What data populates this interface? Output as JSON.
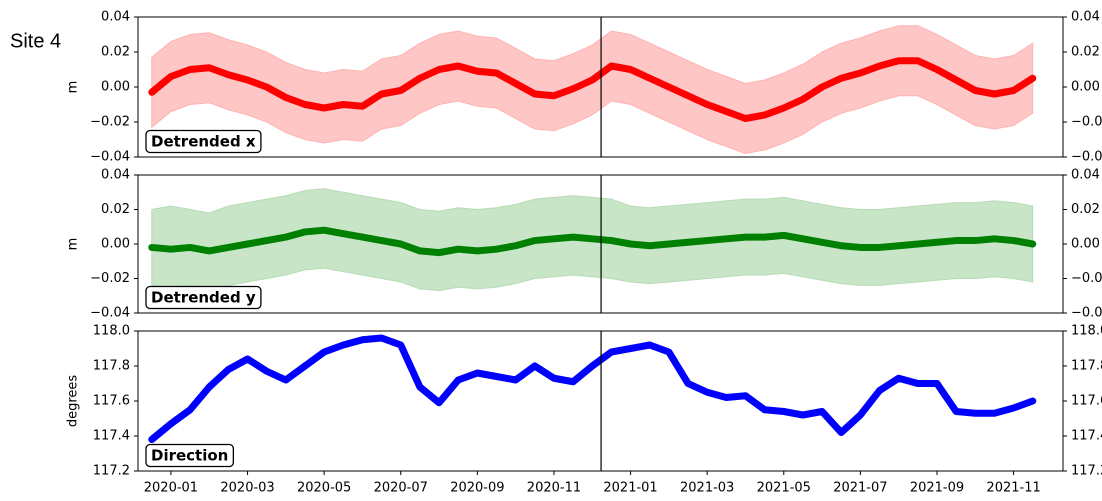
{
  "page_label": "Site 4",
  "chart_data": [
    {
      "type": "line",
      "annotation": "Detrended x",
      "ylabel": "m",
      "x": [
        -0.5,
        0,
        0.5,
        1,
        1.5,
        2,
        2.5,
        3,
        3.5,
        4,
        4.5,
        5,
        5.5,
        6,
        6.5,
        7,
        7.5,
        8,
        8.5,
        9,
        9.5,
        10,
        10.5,
        11,
        11.5,
        12,
        12.5,
        13,
        13.5,
        14,
        14.5,
        15,
        15.5,
        16,
        16.5,
        17,
        17.5,
        18,
        18.5,
        19,
        19.5,
        20,
        20.5,
        21,
        21.5,
        22,
        22.5
      ],
      "xlim": [
        -0.86,
        23.29
      ],
      "vline": 11.23,
      "ylim": [
        -0.04,
        0.04
      ],
      "yticks": [
        {
          "value": -0.04,
          "label": "−0.04"
        },
        {
          "value": -0.02,
          "label": "−0.02"
        },
        {
          "value": 0,
          "label": "0.00"
        },
        0.02,
        0.04
      ],
      "band": {
        "color": "#ffb3b3",
        "upper": [
          0.017,
          0.026,
          0.03,
          0.031,
          0.027,
          0.024,
          0.02,
          0.014,
          0.01,
          0.008,
          0.01,
          0.009,
          0.016,
          0.018,
          0.025,
          0.03,
          0.032,
          0.029,
          0.028,
          0.022,
          0.016,
          0.015,
          0.019,
          0.024,
          0.032,
          0.03,
          0.025,
          0.02,
          0.015,
          0.01,
          0.006,
          0.002,
          0.004,
          0.008,
          0.013,
          0.02,
          0.025,
          0.028,
          0.032,
          0.035,
          0.035,
          0.03,
          0.024,
          0.018,
          0.016,
          0.018,
          0.025
        ],
        "lower": [
          -0.023,
          -0.014,
          -0.01,
          -0.009,
          -0.013,
          -0.016,
          -0.02,
          -0.026,
          -0.03,
          -0.032,
          -0.03,
          -0.031,
          -0.024,
          -0.022,
          -0.015,
          -0.01,
          -0.008,
          -0.011,
          -0.012,
          -0.018,
          -0.024,
          -0.025,
          -0.021,
          -0.016,
          -0.008,
          -0.01,
          -0.015,
          -0.02,
          -0.025,
          -0.03,
          -0.034,
          -0.038,
          -0.036,
          -0.032,
          -0.027,
          -0.02,
          -0.015,
          -0.012,
          -0.008,
          -0.005,
          -0.005,
          -0.01,
          -0.016,
          -0.022,
          -0.024,
          -0.022,
          -0.015
        ]
      },
      "series": [
        {
          "color": "#ff0000",
          "values": [
            -0.003,
            0.006,
            0.01,
            0.011,
            0.007,
            0.004,
            0,
            -0.006,
            -0.01,
            -0.012,
            -0.01,
            -0.011,
            -0.004,
            -0.002,
            0.005,
            0.01,
            0.012,
            0.009,
            0.008,
            0.002,
            -0.004,
            -0.005,
            -0.001,
            0.004,
            0.012,
            0.01,
            0.005,
            0,
            -0.005,
            -0.01,
            -0.014,
            -0.018,
            -0.016,
            -0.012,
            -0.007,
            0,
            0.005,
            0.008,
            0.012,
            0.015,
            0.015,
            0.01,
            0.004,
            -0.002,
            -0.004,
            -0.002,
            0.005
          ]
        }
      ]
    },
    {
      "type": "line",
      "annotation": "Detrended y",
      "ylabel": "m",
      "x": [
        -0.5,
        0,
        0.5,
        1,
        1.5,
        2,
        2.5,
        3,
        3.5,
        4,
        4.5,
        5,
        5.5,
        6,
        6.5,
        7,
        7.5,
        8,
        8.5,
        9,
        9.5,
        10,
        10.5,
        11,
        11.5,
        12,
        12.5,
        13,
        13.5,
        14,
        14.5,
        15,
        15.5,
        16,
        16.5,
        17,
        17.5,
        18,
        18.5,
        19,
        19.5,
        20,
        20.5,
        21,
        21.5,
        22,
        22.5
      ],
      "xlim": [
        -0.86,
        23.29
      ],
      "vline": 11.23,
      "ylim": [
        -0.04,
        0.04
      ],
      "yticks": [
        {
          "value": -0.04,
          "label": "−0.04"
        },
        {
          "value": -0.02,
          "label": "−0.02"
        },
        {
          "value": 0,
          "label": "0.00"
        },
        0.02,
        0.04
      ],
      "band": {
        "color": "#b5dcb5",
        "upper": [
          0.02,
          0.022,
          0.02,
          0.018,
          0.022,
          0.024,
          0.026,
          0.028,
          0.031,
          0.032,
          0.03,
          0.028,
          0.026,
          0.024,
          0.02,
          0.019,
          0.021,
          0.02,
          0.021,
          0.023,
          0.026,
          0.027,
          0.028,
          0.027,
          0.026,
          0.022,
          0.021,
          0.022,
          0.023,
          0.024,
          0.025,
          0.026,
          0.026,
          0.027,
          0.025,
          0.023,
          0.021,
          0.02,
          0.02,
          0.021,
          0.022,
          0.023,
          0.024,
          0.024,
          0.025,
          0.024,
          0.022
        ],
        "lower": [
          -0.024,
          -0.025,
          -0.024,
          -0.026,
          -0.024,
          -0.022,
          -0.02,
          -0.018,
          -0.015,
          -0.014,
          -0.016,
          -0.018,
          -0.02,
          -0.022,
          -0.026,
          -0.027,
          -0.025,
          -0.026,
          -0.025,
          -0.023,
          -0.02,
          -0.019,
          -0.018,
          -0.019,
          -0.02,
          -0.022,
          -0.023,
          -0.022,
          -0.021,
          -0.02,
          -0.019,
          -0.018,
          -0.018,
          -0.017,
          -0.019,
          -0.021,
          -0.023,
          -0.024,
          -0.024,
          -0.023,
          -0.022,
          -0.021,
          -0.02,
          -0.02,
          -0.019,
          -0.02,
          -0.022
        ]
      },
      "series": [
        {
          "color": "#008000",
          "values": [
            -0.002,
            -0.003,
            -0.002,
            -0.004,
            -0.002,
            0,
            0.002,
            0.004,
            0.007,
            0.008,
            0.006,
            0.004,
            0.002,
            0,
            -0.004,
            -0.005,
            -0.003,
            -0.004,
            -0.003,
            -0.001,
            0.002,
            0.003,
            0.004,
            0.003,
            0.002,
            0,
            -0.001,
            0,
            0.001,
            0.002,
            0.003,
            0.004,
            0.004,
            0.005,
            0.003,
            0.001,
            -0.001,
            -0.002,
            -0.002,
            -0.001,
            0,
            0.001,
            0.002,
            0.002,
            0.003,
            0.002,
            0
          ]
        }
      ]
    },
    {
      "type": "line",
      "annotation": "Direction",
      "ylabel": "degrees",
      "x": [
        -0.5,
        0,
        0.5,
        1,
        1.5,
        2,
        2.5,
        3,
        3.5,
        4,
        4.5,
        5,
        5.5,
        6,
        6.5,
        7,
        7.5,
        8,
        8.5,
        9,
        9.5,
        10,
        10.5,
        11,
        11.5,
        12,
        12.5,
        13,
        13.5,
        14,
        14.5,
        15,
        15.5,
        16,
        16.5,
        17,
        17.5,
        18,
        18.5,
        19,
        19.5,
        20,
        20.5,
        21,
        21.5,
        22,
        22.5
      ],
      "xlim": [
        -0.86,
        23.29
      ],
      "vline": 11.23,
      "ylim": [
        117.2,
        118.0
      ],
      "yticks": [
        117.2,
        117.4,
        117.6,
        117.8,
        {
          "value": 118.0,
          "label": "118.0"
        }
      ],
      "xticks": [
        {
          "value": 0,
          "label": "2020-01"
        },
        {
          "value": 2,
          "label": "2020-03"
        },
        {
          "value": 4,
          "label": "2020-05"
        },
        {
          "value": 6,
          "label": "2020-07"
        },
        {
          "value": 8,
          "label": "2020-09"
        },
        {
          "value": 10,
          "label": "2020-11"
        },
        {
          "value": 12,
          "label": "2021-01"
        },
        {
          "value": 14,
          "label": "2021-03"
        },
        {
          "value": 16,
          "label": "2021-05"
        },
        {
          "value": 18,
          "label": "2021-07"
        },
        {
          "value": 20,
          "label": "2021-09"
        },
        {
          "value": 22,
          "label": "2021-11"
        }
      ],
      "series": [
        {
          "color": "#0000ff",
          "values": [
            117.38,
            117.47,
            117.55,
            117.68,
            117.78,
            117.84,
            117.77,
            117.72,
            117.8,
            117.88,
            117.92,
            117.95,
            117.96,
            117.92,
            117.68,
            117.59,
            117.72,
            117.76,
            117.74,
            117.72,
            117.8,
            117.73,
            117.71,
            117.8,
            117.88,
            117.9,
            117.92,
            117.88,
            117.7,
            117.65,
            117.62,
            117.63,
            117.55,
            117.54,
            117.52,
            117.54,
            117.42,
            117.52,
            117.66,
            117.73,
            117.7,
            117.7,
            117.54,
            117.53,
            117.53,
            117.56,
            117.6
          ]
        }
      ]
    }
  ]
}
